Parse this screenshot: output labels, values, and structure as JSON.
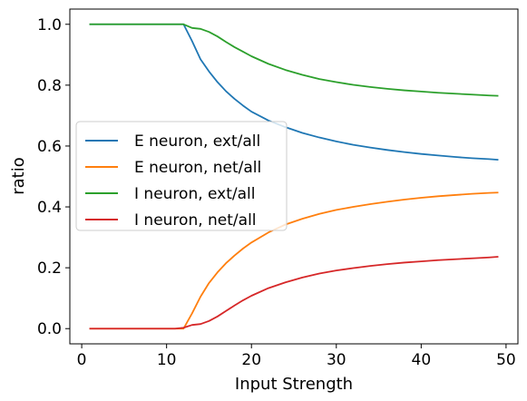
{
  "chart_data": {
    "type": "line",
    "title": "",
    "xlabel": "Input Strength",
    "ylabel": "ratio",
    "xlim": [
      -1.4,
      51.4
    ],
    "ylim": [
      -0.05,
      1.05
    ],
    "xticks": [
      0,
      10,
      20,
      30,
      40,
      50
    ],
    "yticks": [
      0.0,
      0.2,
      0.4,
      0.6,
      0.8,
      1.0
    ],
    "xtick_labels": [
      "0",
      "10",
      "20",
      "30",
      "40",
      "50"
    ],
    "ytick_labels": [
      "0.0",
      "0.2",
      "0.4",
      "0.6",
      "0.8",
      "1.0"
    ],
    "grid": false,
    "legend_position": "center-left",
    "series": [
      {
        "name": "E neuron, ext/all",
        "color": "#1f77b4",
        "points": [
          [
            1,
            1.0
          ],
          [
            5,
            1.0
          ],
          [
            10,
            1.0
          ],
          [
            11,
            1.0
          ],
          [
            12,
            1.0
          ],
          [
            13,
            0.945
          ],
          [
            14,
            0.885
          ],
          [
            15,
            0.845
          ],
          [
            16,
            0.81
          ],
          [
            17,
            0.78
          ],
          [
            18,
            0.755
          ],
          [
            19,
            0.733
          ],
          [
            20,
            0.713
          ],
          [
            22,
            0.684
          ],
          [
            24,
            0.662
          ],
          [
            26,
            0.643
          ],
          [
            28,
            0.628
          ],
          [
            30,
            0.615
          ],
          [
            32,
            0.604
          ],
          [
            34,
            0.595
          ],
          [
            36,
            0.587
          ],
          [
            38,
            0.58
          ],
          [
            40,
            0.574
          ],
          [
            42,
            0.569
          ],
          [
            44,
            0.564
          ],
          [
            46,
            0.56
          ],
          [
            48,
            0.557
          ],
          [
            49,
            0.555
          ]
        ]
      },
      {
        "name": "E neuron, net/all",
        "color": "#ff7f0e",
        "points": [
          [
            1,
            0.0
          ],
          [
            5,
            0.0
          ],
          [
            10,
            0.0
          ],
          [
            11,
            0.0
          ],
          [
            12,
            0.0
          ],
          [
            13,
            0.05
          ],
          [
            14,
            0.105
          ],
          [
            15,
            0.15
          ],
          [
            16,
            0.185
          ],
          [
            17,
            0.215
          ],
          [
            18,
            0.24
          ],
          [
            19,
            0.263
          ],
          [
            20,
            0.283
          ],
          [
            22,
            0.316
          ],
          [
            24,
            0.342
          ],
          [
            26,
            0.361
          ],
          [
            28,
            0.377
          ],
          [
            30,
            0.39
          ],
          [
            32,
            0.4
          ],
          [
            34,
            0.409
          ],
          [
            36,
            0.417
          ],
          [
            38,
            0.424
          ],
          [
            40,
            0.43
          ],
          [
            42,
            0.435
          ],
          [
            44,
            0.439
          ],
          [
            46,
            0.443
          ],
          [
            48,
            0.446
          ],
          [
            49,
            0.447
          ]
        ]
      },
      {
        "name": "I neuron, ext/all",
        "color": "#2ca02c",
        "points": [
          [
            1,
            1.0
          ],
          [
            5,
            1.0
          ],
          [
            10,
            1.0
          ],
          [
            11,
            1.0
          ],
          [
            12,
            1.0
          ],
          [
            13,
            0.988
          ],
          [
            14,
            0.985
          ],
          [
            15,
            0.975
          ],
          [
            16,
            0.96
          ],
          [
            17,
            0.942
          ],
          [
            18,
            0.925
          ],
          [
            19,
            0.91
          ],
          [
            20,
            0.895
          ],
          [
            22,
            0.87
          ],
          [
            24,
            0.85
          ],
          [
            26,
            0.834
          ],
          [
            28,
            0.82
          ],
          [
            30,
            0.81
          ],
          [
            32,
            0.801
          ],
          [
            34,
            0.794
          ],
          [
            36,
            0.788
          ],
          [
            38,
            0.783
          ],
          [
            40,
            0.779
          ],
          [
            42,
            0.775
          ],
          [
            44,
            0.772
          ],
          [
            46,
            0.769
          ],
          [
            48,
            0.766
          ],
          [
            49,
            0.765
          ]
        ]
      },
      {
        "name": "I neuron, net/all",
        "color": "#d62728",
        "points": [
          [
            1,
            0.0
          ],
          [
            5,
            0.0
          ],
          [
            10,
            0.0
          ],
          [
            11,
            0.0
          ],
          [
            12,
            0.003
          ],
          [
            13,
            0.012
          ],
          [
            14,
            0.015
          ],
          [
            15,
            0.025
          ],
          [
            16,
            0.04
          ],
          [
            17,
            0.058
          ],
          [
            18,
            0.076
          ],
          [
            19,
            0.093
          ],
          [
            20,
            0.108
          ],
          [
            22,
            0.133
          ],
          [
            24,
            0.152
          ],
          [
            26,
            0.168
          ],
          [
            28,
            0.181
          ],
          [
            30,
            0.191
          ],
          [
            32,
            0.199
          ],
          [
            34,
            0.206
          ],
          [
            36,
            0.212
          ],
          [
            38,
            0.217
          ],
          [
            40,
            0.221
          ],
          [
            42,
            0.225
          ],
          [
            44,
            0.228
          ],
          [
            46,
            0.231
          ],
          [
            48,
            0.234
          ],
          [
            49,
            0.236
          ]
        ]
      }
    ]
  }
}
